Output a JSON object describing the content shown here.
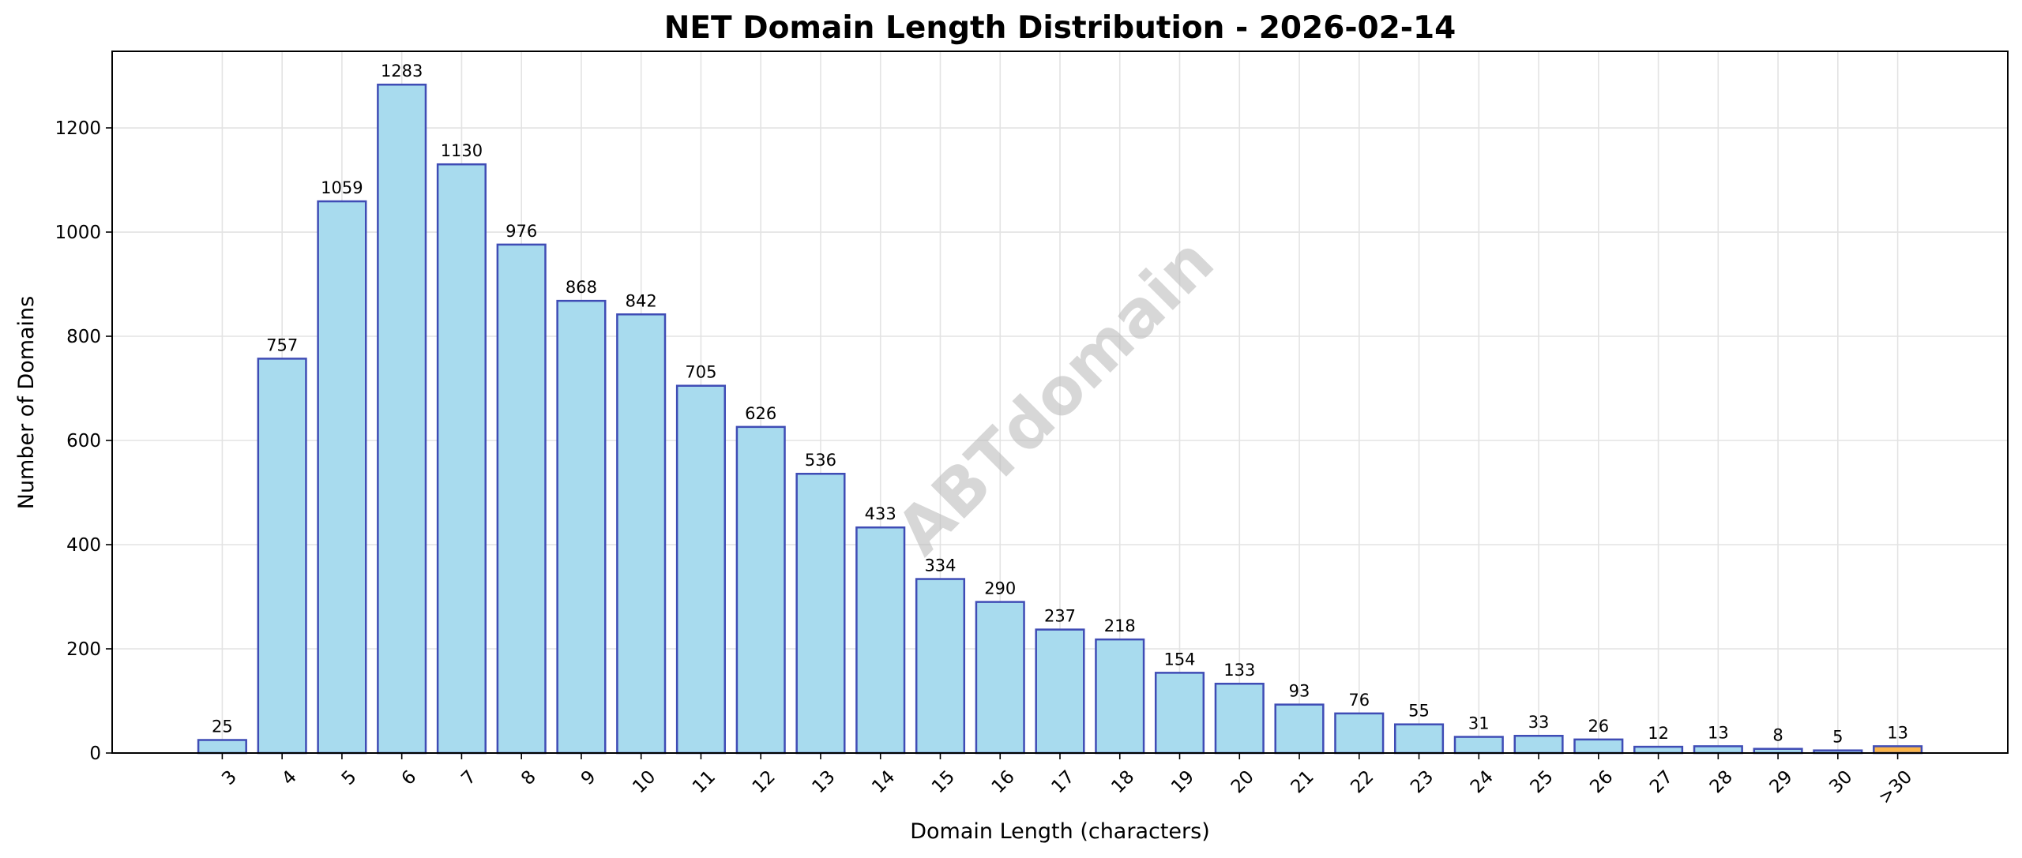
{
  "chart_data": {
    "type": "bar",
    "title": "NET Domain Length Distribution - 2026-02-14",
    "xlabel": "Domain Length (characters)",
    "ylabel": "Number of Domains",
    "categories": [
      "3",
      "4",
      "5",
      "6",
      "7",
      "8",
      "9",
      "10",
      "11",
      "12",
      "13",
      "14",
      "15",
      "16",
      "17",
      "18",
      "19",
      "20",
      "21",
      "22",
      "23",
      "24",
      "25",
      "26",
      "27",
      "28",
      "29",
      "30",
      ">30"
    ],
    "values": [
      25,
      757,
      1059,
      1283,
      1130,
      976,
      868,
      842,
      705,
      626,
      536,
      433,
      334,
      290,
      237,
      218,
      154,
      133,
      93,
      76,
      55,
      31,
      33,
      26,
      12,
      13,
      8,
      5,
      13
    ],
    "ylim": [
      0,
      1347
    ],
    "yticks": [
      0,
      200,
      400,
      600,
      800,
      1000,
      1200
    ],
    "grid": true,
    "watermark": "ABTdomain",
    "colors": {
      "bar_fill": "#a8dbee",
      "bar_edge": "#3f4cb5",
      "highlight_fill": "#fbb54a",
      "grid": "#e3e3e3"
    },
    "highlight_category": ">30"
  }
}
